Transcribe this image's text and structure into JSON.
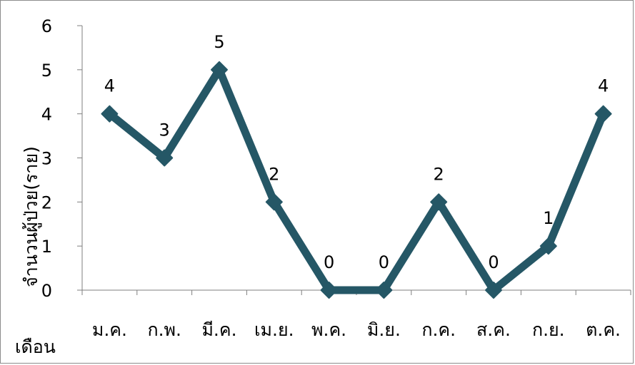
{
  "chart_data": {
    "type": "line",
    "categories": [
      "ม.ค.",
      "ก.พ.",
      "มี.ค.",
      "เม.ย.",
      "พ.ค.",
      "มิ.ย.",
      "ก.ค.",
      "ส.ค.",
      "ก.ย.",
      "ต.ค."
    ],
    "values": [
      4,
      3,
      5,
      2,
      0,
      0,
      2,
      0,
      1,
      4
    ],
    "xlabel": "เดือน",
    "ylabel": "จำนวนผู้ป่วย(ราย)",
    "ylim": [
      0,
      6
    ],
    "yticks": [
      0,
      1,
      2,
      3,
      4,
      5,
      6
    ],
    "grid": false,
    "legend": "none",
    "data_labels": true,
    "line_color": "#255766"
  }
}
